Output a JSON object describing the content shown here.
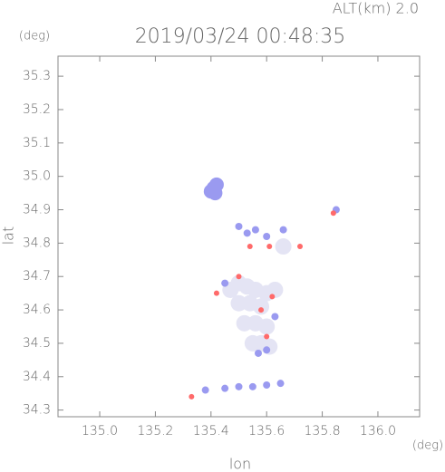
{
  "chart_data": {
    "type": "scatter",
    "title": "2019/03/24 00:48:35",
    "subtitle": "ALT(km) 2.0",
    "y_unit": "(deg)",
    "x_unit": "(deg)",
    "xlabel": "lon",
    "ylabel": "lat",
    "xlim": [
      134.85,
      136.15
    ],
    "ylim": [
      34.28,
      35.36
    ],
    "xticks": [
      {
        "value": 135.0,
        "label": "135.0"
      },
      135.2,
      135.4,
      135.6,
      135.8,
      {
        "value": 136.0,
        "label": "136.0"
      }
    ],
    "yticks": [
      34.3,
      34.4,
      34.5,
      34.6,
      34.7,
      34.8,
      34.9,
      {
        "value": 35.0,
        "label": "35.0"
      },
      35.1,
      35.2,
      35.3
    ],
    "series": [
      {
        "color": "#e4e4f4",
        "x": [
          135.47,
          135.5,
          135.53,
          135.56,
          135.6,
          135.63,
          135.5,
          135.54,
          135.58,
          135.52,
          135.56,
          135.6,
          135.55,
          135.58,
          135.61,
          135.66
        ],
        "values": [
          34.66,
          34.68,
          34.67,
          34.66,
          34.65,
          34.66,
          34.62,
          34.62,
          34.61,
          34.56,
          34.56,
          34.55,
          34.5,
          34.5,
          34.49,
          34.79
        ]
      },
      {
        "color": "#9a9af0",
        "x": [
          135.41,
          135.4,
          135.42,
          135.415,
          135.5,
          135.53,
          135.56,
          135.6,
          135.66,
          135.85,
          135.38,
          135.45,
          135.5,
          135.55,
          135.6,
          135.65,
          135.6,
          135.57,
          135.63,
          135.45
        ],
        "values": [
          34.965,
          34.955,
          34.975,
          34.95,
          34.85,
          34.83,
          34.84,
          34.82,
          34.84,
          34.9,
          34.36,
          34.365,
          34.37,
          34.37,
          34.375,
          34.38,
          34.48,
          34.47,
          34.58,
          34.68
        ]
      },
      {
        "color": "#ff6a6a",
        "x": [
          135.54,
          135.61,
          135.42,
          135.58,
          135.33,
          135.72,
          135.84,
          135.6,
          135.5,
          135.62
        ],
        "values": [
          34.79,
          34.79,
          34.65,
          34.6,
          34.34,
          34.79,
          34.89,
          34.52,
          34.7,
          34.64
        ]
      }
    ]
  }
}
